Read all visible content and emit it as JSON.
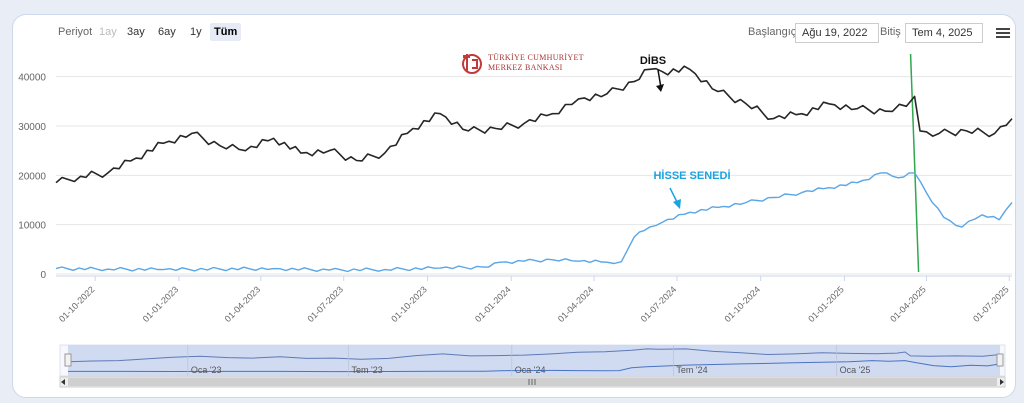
{
  "range_selector": {
    "label": "Periyot",
    "buttons": [
      {
        "label": "1ay",
        "state": "disabled"
      },
      {
        "label": "3ay",
        "state": "normal"
      },
      {
        "label": "6ay",
        "state": "normal"
      },
      {
        "label": "1y",
        "state": "normal"
      },
      {
        "label": "Tüm",
        "state": "selected"
      }
    ],
    "start_label": "Başlangıç",
    "start_value": "Ağu 19, 2022",
    "end_label": "Bitiş",
    "end_value": "Tem 4, 2025"
  },
  "logo": {
    "line1": "TÜRKİYE CUMHURİYET",
    "line2": "MERKEZ BANKASI"
  },
  "navigator": {
    "labels": [
      "Oca '23",
      "Tem '23",
      "Oca '24",
      "Tem '24",
      "Oca '25"
    ]
  },
  "colors": {
    "dibs": "#262626",
    "hisse": "#5aa6e6",
    "marker": "#2fa84f",
    "annotation_blue": "#1aa3e0"
  },
  "chart_data": {
    "type": "line",
    "title": "",
    "xlabel": "",
    "ylabel": "",
    "ylim": [
      0,
      45000
    ],
    "yticks": [
      "0",
      "10000",
      "20000",
      "30000",
      "40000"
    ],
    "xticks": [
      "01-10-2022",
      "01-01-2023",
      "01-04-2023",
      "01-07-2023",
      "01-10-2023",
      "01-01-2024",
      "01-04-2024",
      "01-07-2024",
      "01-10-2024",
      "01-01-2025",
      "01-04-2025",
      "01-07-2025"
    ],
    "grid": true,
    "annotations": [
      {
        "text": "DİBS",
        "series": "DİBS"
      },
      {
        "text": "HİSSE SENEDİ",
        "series": "HİSSE SENEDİ"
      }
    ],
    "vertical_marker_date": "2025-03-19",
    "series": [
      {
        "name": "DİBS",
        "x": [
          "2022-08-19",
          "2022-09-15",
          "2022-10-15",
          "2022-11-15",
          "2022-12-15",
          "2023-01-15",
          "2023-02-15",
          "2023-03-15",
          "2023-04-15",
          "2023-05-15",
          "2023-06-15",
          "2023-07-15",
          "2023-08-15",
          "2023-09-15",
          "2023-10-15",
          "2023-11-15",
          "2023-12-15",
          "2024-01-15",
          "2024-02-15",
          "2024-03-15",
          "2024-04-15",
          "2024-05-15",
          "2024-06-01",
          "2024-06-15",
          "2024-07-15",
          "2024-08-15",
          "2024-09-15",
          "2024-10-15",
          "2024-11-15",
          "2024-12-15",
          "2025-01-15",
          "2025-02-15",
          "2025-03-10",
          "2025-03-19",
          "2025-03-25",
          "2025-04-15",
          "2025-05-15",
          "2025-06-15",
          "2025-07-04"
        ],
        "values": [
          18500,
          19800,
          20500,
          23500,
          26500,
          28500,
          26000,
          25000,
          27500,
          24500,
          25000,
          23000,
          24500,
          29500,
          32500,
          29000,
          29500,
          30500,
          32500,
          35500,
          36500,
          39000,
          41500,
          41000,
          41500,
          37000,
          34500,
          31500,
          32500,
          34500,
          33500,
          33000,
          34000,
          36000,
          29000,
          28500,
          29000,
          28500,
          31500
        ]
      },
      {
        "name": "HİSSE SENEDİ",
        "x": [
          "2022-08-19",
          "2022-10-15",
          "2022-12-15",
          "2023-02-15",
          "2023-04-15",
          "2023-06-15",
          "2023-08-15",
          "2023-10-15",
          "2023-12-01",
          "2023-12-20",
          "2024-01-15",
          "2024-02-15",
          "2024-03-15",
          "2024-04-15",
          "2024-05-01",
          "2024-05-15",
          "2024-06-01",
          "2024-06-15",
          "2024-07-15",
          "2024-08-15",
          "2024-09-15",
          "2024-10-15",
          "2024-11-15",
          "2024-12-15",
          "2025-01-15",
          "2025-02-10",
          "2025-03-01",
          "2025-03-19",
          "2025-04-01",
          "2025-04-20",
          "2025-05-10",
          "2025-06-01",
          "2025-06-20",
          "2025-07-04"
        ],
        "values": [
          1100,
          1000,
          900,
          1000,
          1100,
          800,
          900,
          1200,
          1400,
          2400,
          2600,
          2900,
          2600,
          2400,
          2500,
          7500,
          9500,
          10500,
          12500,
          13500,
          14500,
          15500,
          16500,
          17500,
          18500,
          20500,
          19500,
          20500,
          16500,
          11500,
          9500,
          12000,
          11000,
          14500
        ]
      }
    ]
  }
}
